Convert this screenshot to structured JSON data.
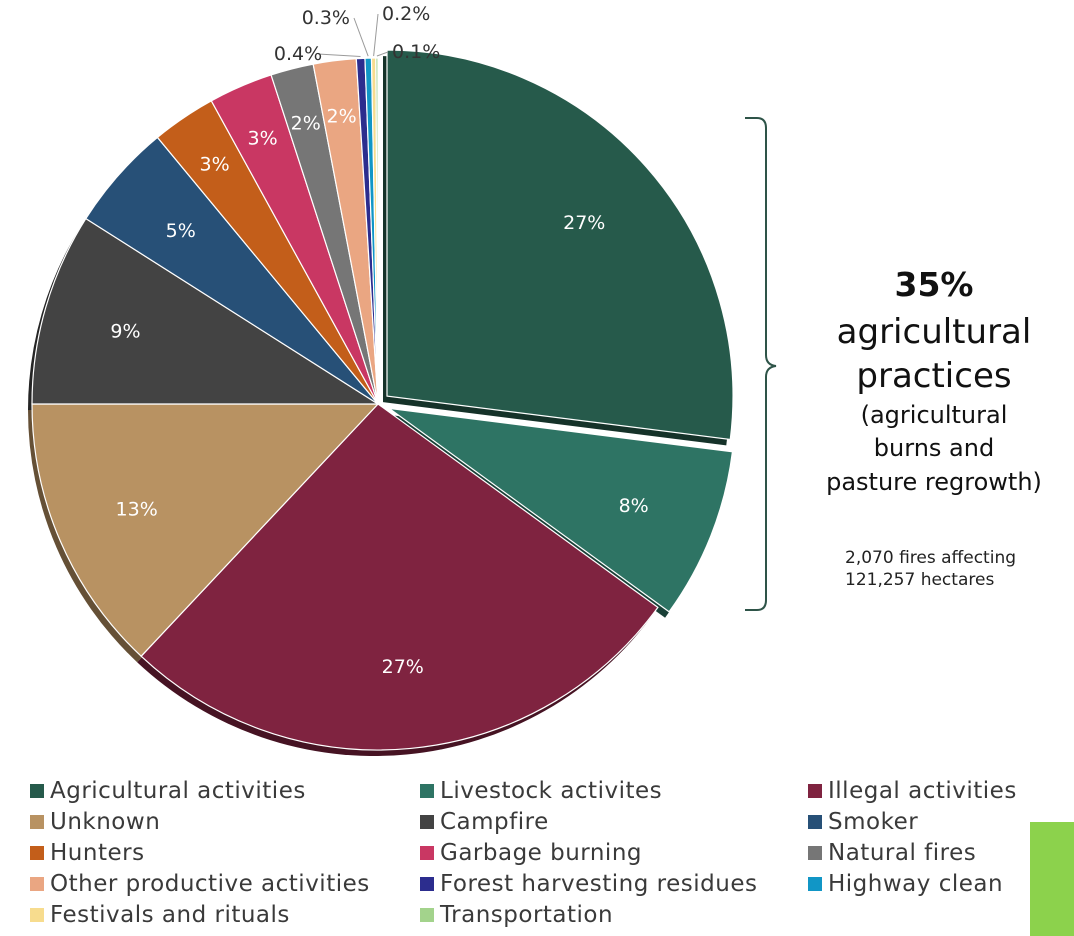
{
  "chart_data": {
    "type": "pie",
    "categories": [
      "Agricultural activities",
      "Livestock activites",
      "Illegal activities",
      "Unknown",
      "Campfire",
      "Smoker",
      "Hunters",
      "Garbage burning",
      "Natural fires",
      "Other productive activities",
      "Forest harvesting residues",
      "Highway clean",
      "Festivals and rituals",
      "Transportation"
    ],
    "values": [
      27,
      8,
      27,
      13,
      9,
      5,
      3,
      3,
      2,
      2,
      0.4,
      0.3,
      0.2,
      0.1
    ],
    "labels": [
      "27%",
      "8%",
      "27%",
      "13%",
      "9%",
      "5%",
      "3%",
      "3%",
      "2%",
      "2%",
      "0.4%",
      "0.3%",
      "0.2%",
      "0.1%"
    ],
    "colors": [
      "#265a4b",
      "#2e7464",
      "#7f2340",
      "#b89262",
      "#434343",
      "#275077",
      "#c35e1a",
      "#c93763",
      "#767676",
      "#eaa682",
      "#2c2d8e",
      "#1196c6",
      "#f7dc8e",
      "#a3d38c"
    ],
    "exploded": [
      "Agricultural activities",
      "Livestock activites"
    ],
    "legend_position": "bottom"
  },
  "callout": {
    "percent": "35%",
    "line1": "agricultural",
    "line2": "practices",
    "sub1": "(agricultural",
    "sub2": "burns and",
    "sub3": "pasture regrowth)",
    "stat1": "2,070 fires affecting",
    "stat2": "121,257 hectares"
  }
}
